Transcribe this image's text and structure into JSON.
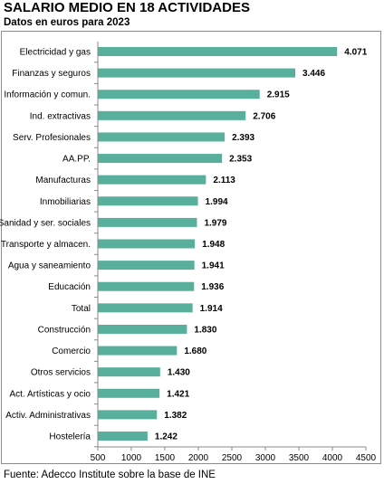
{
  "header": {
    "title": "SALARIO MEDIO EN 18 ACTIVIDADES",
    "subtitle": "Datos en euros para 2023"
  },
  "footer": {
    "source": "Fuente: Adecco Institute sobre la base de INE"
  },
  "chart_data": {
    "type": "bar",
    "orientation": "horizontal",
    "title": "SALARIO MEDIO EN 18 ACTIVIDADES",
    "subtitle": "Datos en euros para 2023",
    "xlabel": "",
    "ylabel": "",
    "xlim": [
      500,
      4500
    ],
    "xticks": [
      500,
      1000,
      1500,
      2000,
      2500,
      3000,
      3500,
      4000,
      4500
    ],
    "grid": false,
    "bar_color": "#58b09c",
    "categories": [
      "Electricidad y gas",
      "Finanzas y seguros",
      "Información y comun.",
      "Ind. extractivas",
      "Serv. Profesionales",
      "AA.PP.",
      "Manufacturas",
      "Inmobiliarias",
      "Sanidad y ser. sociales",
      "Transporte y almacen.",
      "Agua y saneamiento",
      "Educación",
      "Total",
      "Construcción",
      "Comercio",
      "Otros servicios",
      "Act. Artísticas y ocio",
      "Activ. Administrativas",
      "Hostelería"
    ],
    "values": [
      4071,
      3446,
      2915,
      2706,
      2393,
      2353,
      2113,
      1994,
      1979,
      1948,
      1941,
      1936,
      1914,
      1830,
      1680,
      1430,
      1421,
      1382,
      1242
    ],
    "value_labels": [
      "4.071",
      "3.446",
      "2.915",
      "2.706",
      "2.393",
      "2.353",
      "2.113",
      "1.994",
      "1.979",
      "1.948",
      "1.941",
      "1.936",
      "1.914",
      "1.830",
      "1.680",
      "1.430",
      "1.421",
      "1.382",
      "1.242"
    ]
  }
}
